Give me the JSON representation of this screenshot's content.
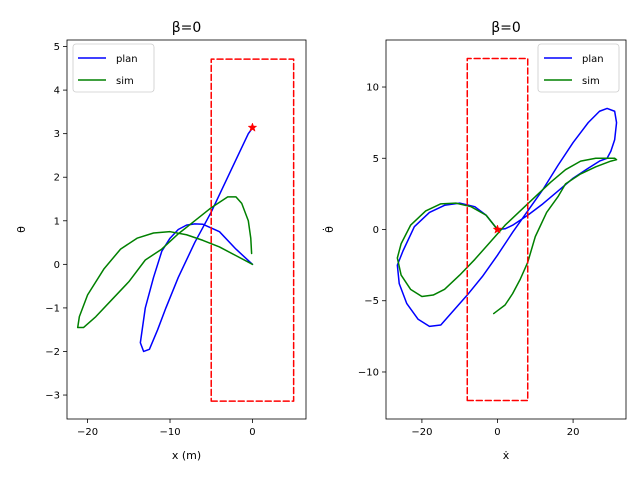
{
  "figure": {
    "background": "#ffffff"
  },
  "chart_data": [
    {
      "type": "line",
      "title": "β=0",
      "xlabel": "x (m)",
      "ylabel": "θ",
      "xlim": [
        -22.5,
        6.5
      ],
      "ylim": [
        -3.55,
        5.15
      ],
      "xticks": [
        -20,
        -10,
        0
      ],
      "yticks": [
        -3,
        -2,
        -1,
        0,
        1,
        2,
        3,
        4,
        5
      ],
      "legend_position": "top-left",
      "series": [
        {
          "name": "plan",
          "color": "#0000ff",
          "x": [
            0,
            -2,
            -4,
            -6,
            -7,
            -8,
            -9,
            -10,
            -11,
            -12,
            -13,
            -13.6,
            -13.2,
            -12.5,
            -11.5,
            -10.5,
            -9,
            -7,
            -5,
            -3,
            -1.5,
            -0.5,
            0
          ],
          "y": [
            0,
            0.35,
            0.75,
            0.92,
            0.93,
            0.9,
            0.8,
            0.6,
            0.3,
            -0.3,
            -1,
            -1.8,
            -2,
            -1.95,
            -1.5,
            -1,
            -0.3,
            0.5,
            1.2,
            2,
            2.6,
            3,
            3.13
          ]
        },
        {
          "name": "sim",
          "color": "#008000",
          "x": [
            0,
            -2,
            -4,
            -6,
            -8,
            -10,
            -12,
            -14,
            -16,
            -18,
            -20,
            -21,
            -21.2,
            -20.5,
            -19,
            -17,
            -15,
            -13,
            -11,
            -9,
            -7,
            -5,
            -3,
            -2,
            -1.3,
            -0.5,
            -0.2,
            -0.1
          ],
          "y": [
            0,
            0.2,
            0.4,
            0.55,
            0.68,
            0.75,
            0.72,
            0.6,
            0.35,
            -0.1,
            -0.7,
            -1.2,
            -1.45,
            -1.45,
            -1.2,
            -0.8,
            -0.4,
            0.1,
            0.35,
            0.7,
            1,
            1.3,
            1.55,
            1.55,
            1.4,
            1,
            0.6,
            0.25
          ]
        },
        {
          "name": "bounds",
          "color": "#ff0000",
          "style": "dashed",
          "x": [
            -5,
            5,
            5,
            -5,
            -5
          ],
          "y": [
            -3.14,
            -3.14,
            4.71,
            4.71,
            -3.14
          ]
        }
      ],
      "marker": {
        "name": "goal",
        "x": 0,
        "y": 3.14,
        "color": "#ff0000",
        "symbol": "star"
      }
    },
    {
      "type": "line",
      "title": "β=0",
      "xlabel": "ẋ",
      "ylabel": "θ̇",
      "xlim": [
        -29.5,
        34
      ],
      "ylim": [
        -13.3,
        13.3
      ],
      "xticks": [
        -20,
        0,
        20
      ],
      "yticks": [
        -10,
        -5,
        0,
        5,
        10
      ],
      "legend_position": "top-right",
      "series": [
        {
          "name": "plan",
          "color": "#0000ff",
          "x": [
            0,
            -3,
            -6,
            -10,
            -14,
            -18,
            -22,
            -25,
            -26.5,
            -26,
            -24,
            -21,
            -18,
            -15,
            -12,
            -8,
            -4,
            0,
            4,
            8,
            12,
            16,
            20,
            24,
            27,
            29,
            31,
            31.5,
            31,
            30,
            29,
            27,
            24,
            20,
            16,
            12,
            8,
            4,
            2,
            0
          ],
          "y": [
            0,
            1,
            1.6,
            1.85,
            1.7,
            1.2,
            0.2,
            -1.5,
            -2.5,
            -3.8,
            -5.2,
            -6.3,
            -6.8,
            -6.7,
            -5.8,
            -4.6,
            -3.3,
            -1.8,
            -0.2,
            1.3,
            2.8,
            4.5,
            6.1,
            7.5,
            8.3,
            8.5,
            8.3,
            7.5,
            6.3,
            5.5,
            5,
            4.8,
            4.3,
            3.6,
            2.7,
            1.8,
            1,
            0.3,
            0.05,
            0
          ]
        },
        {
          "name": "sim",
          "color": "#008000",
          "x": [
            0,
            -3,
            -7,
            -11,
            -15,
            -19,
            -23,
            -25.5,
            -26.5,
            -25.5,
            -23,
            -20,
            -17,
            -14,
            -10,
            -6,
            -2,
            2,
            6,
            10,
            14,
            18,
            22,
            26,
            29,
            31,
            31.5,
            30,
            26,
            22,
            18,
            16,
            13,
            10,
            8,
            6,
            4,
            2,
            0,
            -1
          ],
          "y": [
            0,
            1,
            1.6,
            1.85,
            1.8,
            1.3,
            0.3,
            -1,
            -2,
            -3.2,
            -4.2,
            -4.7,
            -4.6,
            -4.2,
            -3.2,
            -2.1,
            -0.9,
            0.3,
            1.3,
            2.3,
            3.3,
            4.2,
            4.8,
            5,
            5,
            5,
            4.9,
            4.8,
            4.4,
            3.9,
            3.2,
            2.3,
            1.2,
            -0.5,
            -2.3,
            -3.5,
            -4.5,
            -5.3,
            -5.7,
            -5.9
          ]
        },
        {
          "name": "bounds",
          "color": "#ff0000",
          "style": "dashed",
          "x": [
            -8,
            8,
            8,
            -8,
            -8
          ],
          "y": [
            -12,
            -12,
            12,
            12,
            -12
          ]
        }
      ],
      "marker": {
        "name": "goal",
        "x": 0,
        "y": 0,
        "color": "#ff0000",
        "symbol": "star"
      }
    }
  ]
}
